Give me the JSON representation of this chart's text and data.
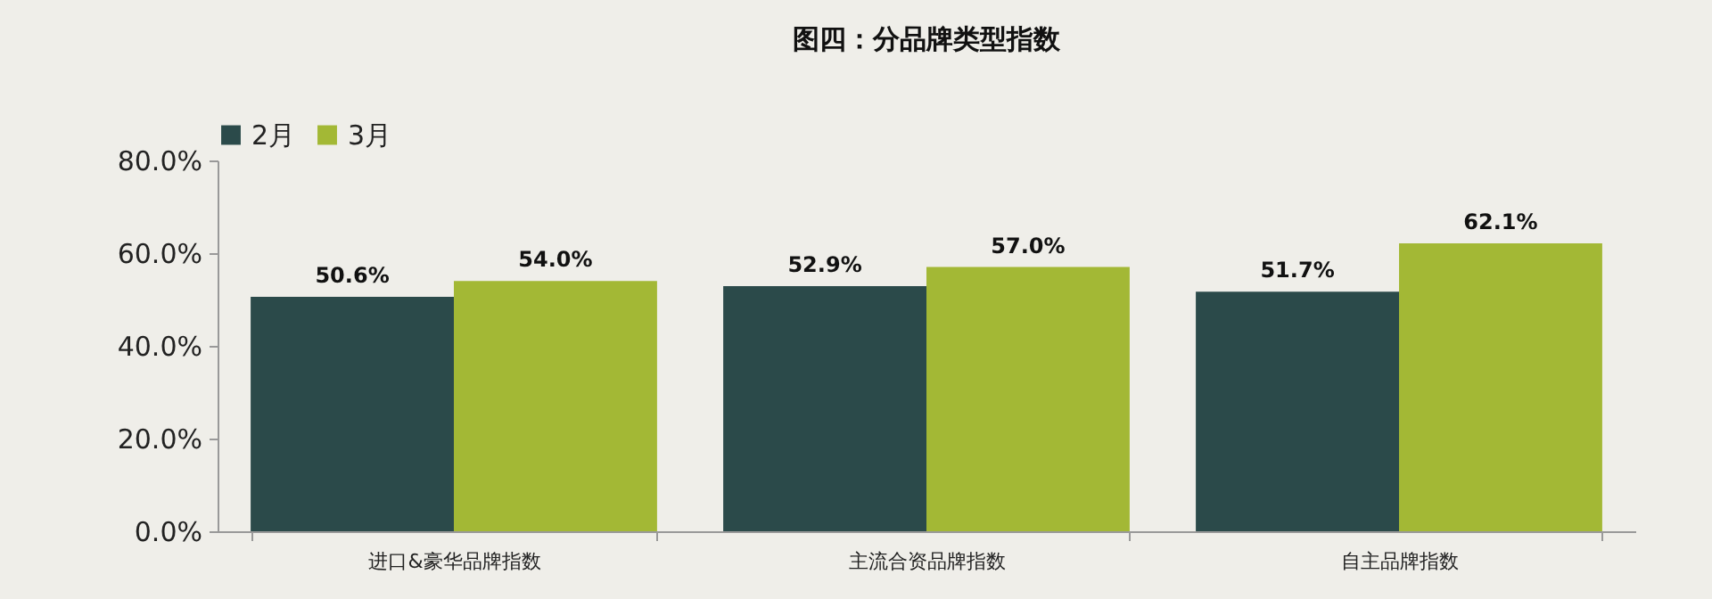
{
  "chart_data": {
    "type": "bar",
    "title": "图四：分品牌类型指数",
    "categories": [
      "进口&豪华品牌指数",
      "主流合资品牌指数",
      "自主品牌指数"
    ],
    "series": [
      {
        "name": "2月",
        "color": "#2b4a4a",
        "values": [
          50.6,
          52.9,
          51.7
        ],
        "value_labels": [
          "50.6%",
          "52.9%",
          "51.7%"
        ]
      },
      {
        "name": "3月",
        "color": "#a3b835",
        "values": [
          54.0,
          57.0,
          62.1
        ],
        "value_labels": [
          "54.0%",
          "57.0%",
          "62.1%"
        ]
      }
    ],
    "ylim": [
      0,
      80
    ],
    "yticks": [
      {
        "value": 0,
        "label": "0.0%"
      },
      {
        "value": 20,
        "label": "20.0%"
      },
      {
        "value": 40,
        "label": "40.0%"
      },
      {
        "value": 60,
        "label": "60.0%"
      },
      {
        "value": 80,
        "label": "80.0%"
      }
    ],
    "grid": false,
    "legend": "top"
  }
}
